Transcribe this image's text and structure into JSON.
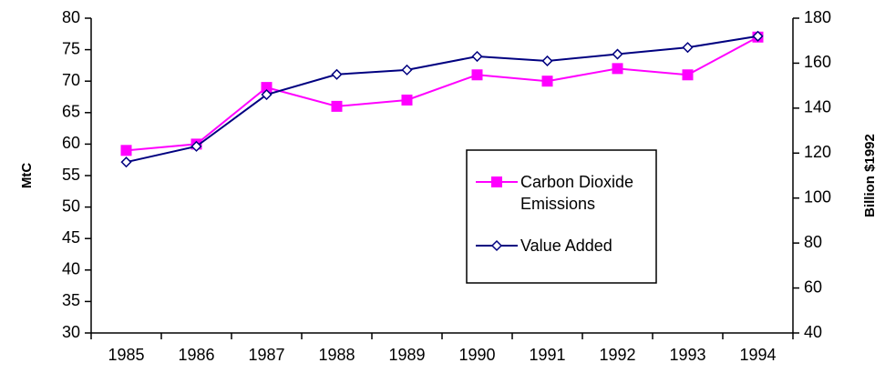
{
  "chart_data": {
    "type": "line",
    "categories": [
      "1985",
      "1986",
      "1987",
      "1988",
      "1989",
      "1990",
      "1991",
      "1992",
      "1993",
      "1994"
    ],
    "series": [
      {
        "name": "Carbon Dioxide Emissions",
        "color": "#ff00ff",
        "marker": "square",
        "axis": "y",
        "values": [
          59,
          60,
          69,
          66,
          67,
          71,
          70,
          72,
          71,
          77
        ]
      },
      {
        "name": "Value Added",
        "color": "#000080",
        "marker": "diamond",
        "axis": "y2",
        "values": [
          116,
          123,
          146,
          155,
          157,
          163,
          161,
          164,
          167,
          172
        ]
      }
    ],
    "ylabel": "MtC",
    "y2label": "Billion $1992",
    "ylim": [
      30,
      80
    ],
    "yticks": [
      30,
      35,
      40,
      45,
      50,
      55,
      60,
      65,
      70,
      75,
      80
    ],
    "y2lim": [
      40,
      180
    ],
    "y2ticks": [
      40,
      60,
      80,
      100,
      120,
      140,
      160,
      180
    ],
    "grid": false
  }
}
